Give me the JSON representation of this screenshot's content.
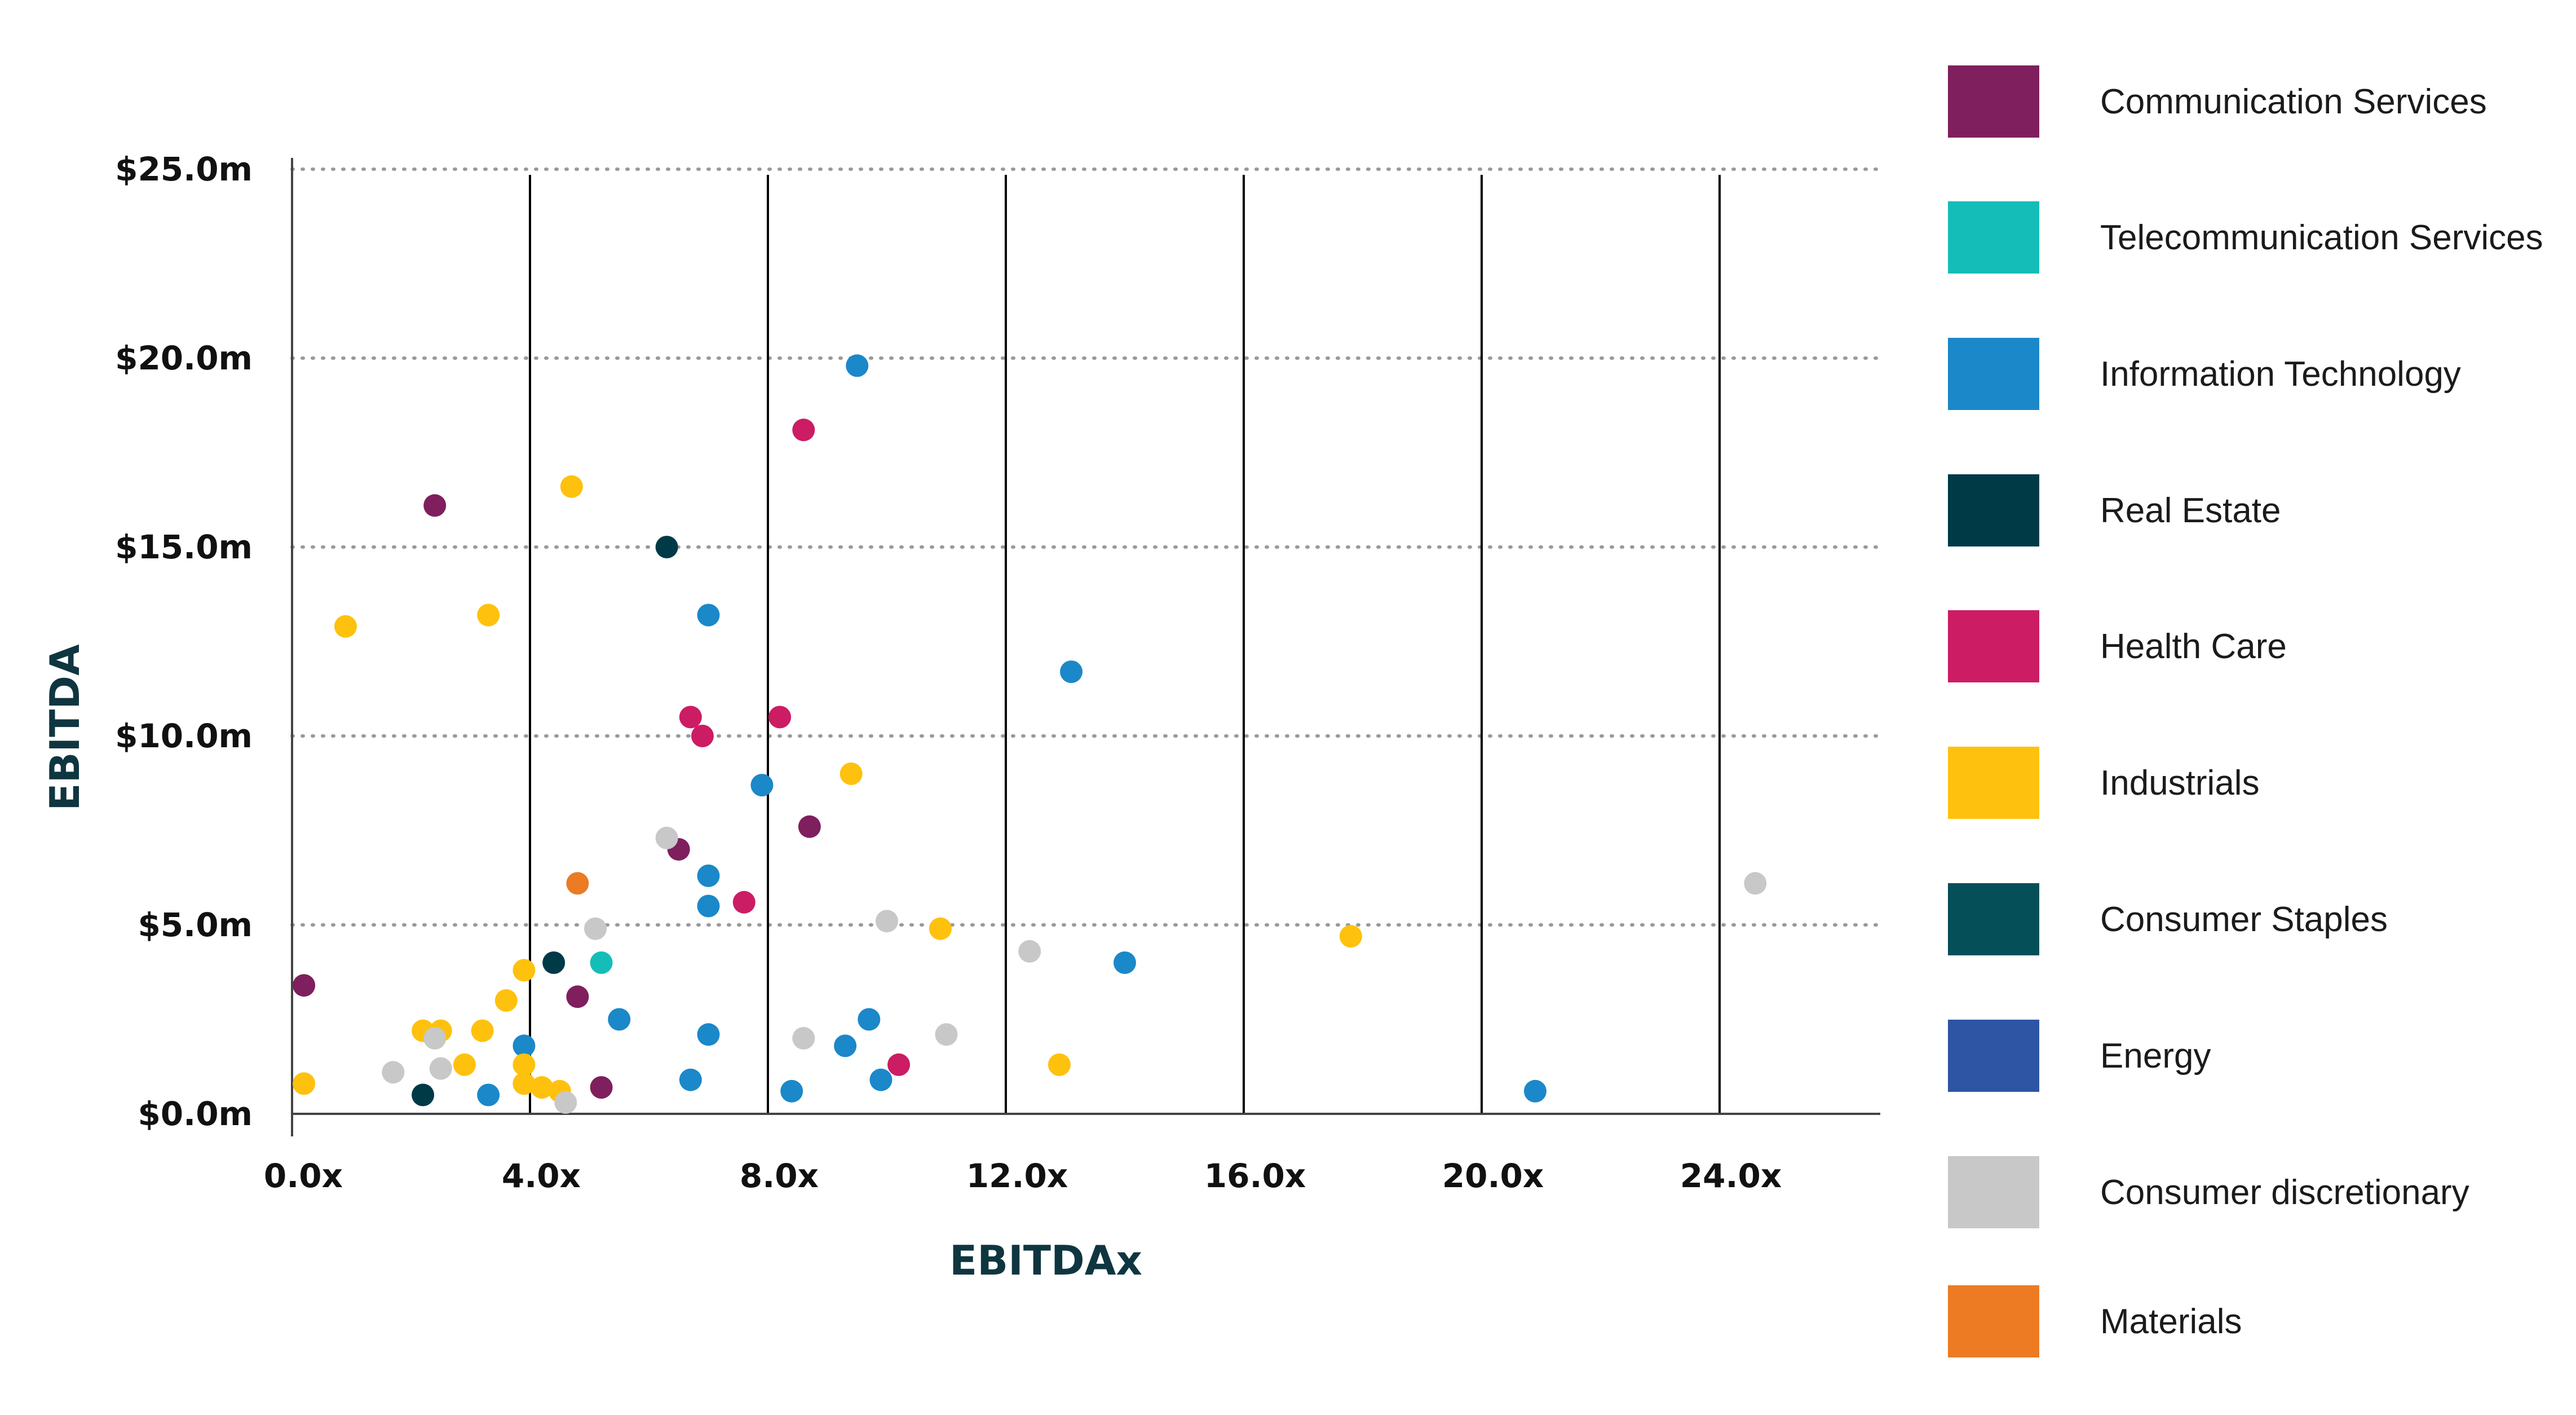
{
  "chart_data": {
    "type": "scatter",
    "xlabel": "EBITDAx",
    "ylabel": "EBITDA",
    "xlim": [
      0,
      26.5
    ],
    "ylim": [
      0,
      25
    ],
    "x_ticks": [
      0,
      4,
      8,
      12,
      16,
      20,
      24
    ],
    "x_tick_labels": [
      "0.0x",
      "4.0x",
      "8.0x",
      "12.0x",
      "16.0x",
      "20.0x",
      "24.0x"
    ],
    "y_ticks": [
      0,
      5,
      10,
      15,
      20,
      25
    ],
    "y_tick_labels": [
      "$0.0m",
      "$5.0m",
      "$10.0m",
      "$15.0m",
      "$20.0m",
      "$25.0m"
    ],
    "grid": {
      "vertical": "solid at x ticks",
      "horizontal": "dotted at y ticks"
    },
    "legend_position": "right",
    "series": [
      {
        "name": "Communication Services",
        "color": "#7f1f5e",
        "points": [
          [
            2.4,
            16.1
          ],
          [
            6.5,
            7.0
          ],
          [
            8.7,
            7.6
          ],
          [
            4.8,
            3.1
          ],
          [
            0.2,
            3.4
          ],
          [
            5.2,
            0.7
          ]
        ]
      },
      {
        "name": "Telecommunication Services",
        "color": "#15bdb9",
        "points": [
          [
            5.2,
            4.0
          ]
        ]
      },
      {
        "name": "Information Technology",
        "color": "#1b88c9",
        "points": [
          [
            9.5,
            19.8
          ],
          [
            7.0,
            13.2
          ],
          [
            13.1,
            11.7
          ],
          [
            7.9,
            8.7
          ],
          [
            7.0,
            6.3
          ],
          [
            7.0,
            5.5
          ],
          [
            14.0,
            4.0
          ],
          [
            5.5,
            2.5
          ],
          [
            3.9,
            1.8
          ],
          [
            7.0,
            2.1
          ],
          [
            9.7,
            2.5
          ],
          [
            9.3,
            1.8
          ],
          [
            6.7,
            0.9
          ],
          [
            9.9,
            0.9
          ],
          [
            8.4,
            0.6
          ],
          [
            3.3,
            0.5
          ],
          [
            20.9,
            0.6
          ]
        ]
      },
      {
        "name": "Real Estate",
        "color": "#013a47",
        "points": [
          [
            6.3,
            15.0
          ],
          [
            4.4,
            4.0
          ],
          [
            2.2,
            0.5
          ]
        ]
      },
      {
        "name": "Health Care",
        "color": "#cc1c64",
        "points": [
          [
            8.6,
            18.1
          ],
          [
            6.7,
            10.5
          ],
          [
            8.2,
            10.5
          ],
          [
            6.9,
            10.0
          ],
          [
            7.6,
            5.6
          ],
          [
            10.2,
            1.3
          ]
        ]
      },
      {
        "name": "Industrials",
        "color": "#fec10d",
        "points": [
          [
            4.7,
            16.6
          ],
          [
            0.9,
            12.9
          ],
          [
            3.3,
            13.2
          ],
          [
            9.4,
            9.0
          ],
          [
            10.9,
            4.9
          ],
          [
            17.8,
            4.7
          ],
          [
            3.9,
            3.8
          ],
          [
            3.6,
            3.0
          ],
          [
            2.2,
            2.2
          ],
          [
            2.5,
            2.2
          ],
          [
            3.2,
            2.2
          ],
          [
            2.9,
            1.3
          ],
          [
            3.9,
            1.3
          ],
          [
            3.9,
            0.8
          ],
          [
            4.2,
            0.7
          ],
          [
            4.5,
            0.6
          ],
          [
            0.2,
            0.8
          ],
          [
            12.9,
            1.3
          ]
        ]
      },
      {
        "name": "Consumer Staples",
        "color": "#054f58",
        "points": []
      },
      {
        "name": "Energy",
        "color": "#2d55a4",
        "points": []
      },
      {
        "name": "Consumer discretionary",
        "color": "#c8c8c8",
        "points": [
          [
            6.3,
            7.3
          ],
          [
            5.1,
            4.9
          ],
          [
            10.0,
            5.1
          ],
          [
            12.4,
            4.3
          ],
          [
            24.6,
            6.1
          ],
          [
            2.4,
            2.0
          ],
          [
            2.5,
            1.2
          ],
          [
            1.7,
            1.1
          ],
          [
            8.6,
            2.0
          ],
          [
            11.0,
            2.1
          ],
          [
            4.6,
            0.3
          ]
        ]
      },
      {
        "name": "Materials",
        "color": "#ec7b24",
        "points": [
          [
            4.8,
            6.1
          ]
        ]
      }
    ]
  }
}
